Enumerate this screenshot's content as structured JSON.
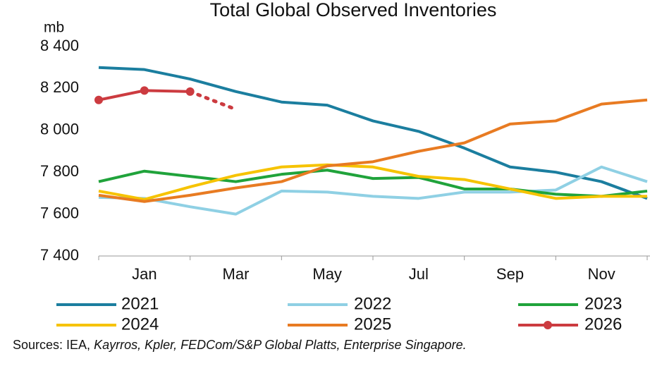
{
  "chart_data": {
    "type": "line",
    "title": "Total Global Observed Inventories",
    "y_unit": "mb",
    "categories": [
      null,
      "Jan",
      null,
      "Mar",
      null,
      "May",
      null,
      "Jul",
      null,
      "Sep",
      null,
      "Nov",
      null
    ],
    "ylim": [
      7400,
      8400
    ],
    "yticks": [
      {
        "value": 7400,
        "label": "7 400"
      },
      {
        "value": 7600,
        "label": "7 600"
      },
      {
        "value": 7800,
        "label": "7 800"
      },
      {
        "value": 8000,
        "label": "8 000"
      },
      {
        "value": 8200,
        "label": "8 200"
      },
      {
        "value": 8400,
        "label": "8 400"
      }
    ],
    "grid": false,
    "series": [
      {
        "name": "2021",
        "color": "#1b7e9f",
        "values": [
          8300,
          8290,
          8245,
          8185,
          8135,
          8120,
          8045,
          7995,
          7915,
          7825,
          7800,
          7755,
          7675
        ]
      },
      {
        "name": "2022",
        "color": "#8fd0e4",
        "values": [
          7680,
          7675,
          7635,
          7600,
          7710,
          7705,
          7685,
          7675,
          7705,
          7705,
          7715,
          7825,
          7755
        ]
      },
      {
        "name": "2023",
        "color": "#20a33b",
        "values": [
          7755,
          7805,
          7780,
          7755,
          7790,
          7810,
          7770,
          7775,
          7720,
          7720,
          7695,
          7685,
          7710
        ]
      },
      {
        "name": "2024",
        "color": "#f6c300",
        "values": [
          7710,
          7670,
          7730,
          7785,
          7825,
          7835,
          7825,
          7780,
          7765,
          7720,
          7675,
          7685,
          7685
        ]
      },
      {
        "name": "2025",
        "color": "#e87b22",
        "values": [
          7690,
          7660,
          7690,
          7725,
          7755,
          7830,
          7850,
          7900,
          7940,
          8030,
          8045,
          8125,
          8145
        ]
      },
      {
        "name": "2026",
        "color": "#cc3b40",
        "marker": true,
        "dotted_from": 2,
        "values": [
          8145,
          8190,
          8185,
          8100,
          null,
          null,
          null,
          null,
          null,
          null,
          null,
          null,
          null
        ]
      }
    ],
    "source": [
      "Sources: IEA,",
      "Kayrros, Kpler, FEDCom/S&P Global Platts, Enterprise Singapore."
    ]
  }
}
